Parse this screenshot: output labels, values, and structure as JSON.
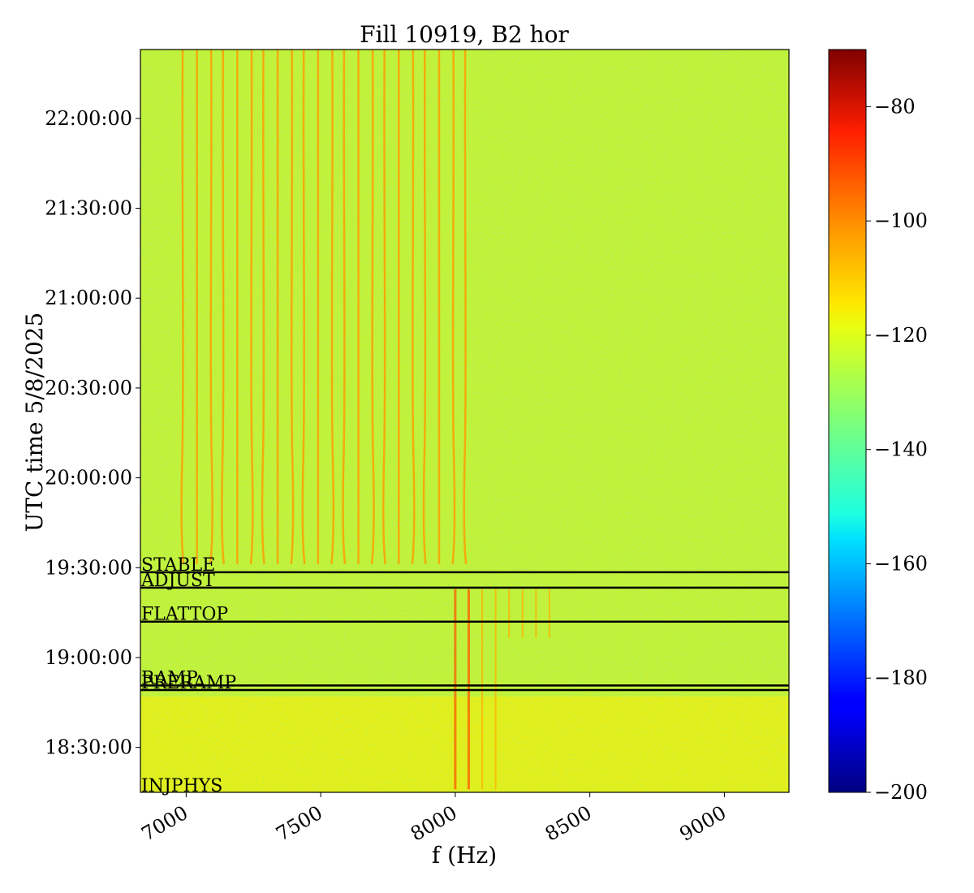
{
  "chart_data": {
    "type": "heatmap",
    "title": "Fill 10919, B2 hor",
    "xlabel": "f (Hz)",
    "ylabel": "UTC time 5/8/2025",
    "colormap": "jet",
    "xlim": [
      6830,
      9240
    ],
    "ylim_seconds_utc": [
      "18:15:00",
      "22:23:00"
    ],
    "x_ticks": [
      7000,
      7500,
      8000,
      8500,
      9000
    ],
    "x_tick_labels": [
      "7000",
      "7500",
      "8000",
      "8500",
      "9000"
    ],
    "y_ticks": [
      "18:30:00",
      "19:00:00",
      "19:30:00",
      "20:00:00",
      "20:30:00",
      "21:00:00",
      "21:30:00",
      "22:00:00"
    ],
    "y_tick_labels": [
      "18:30:00",
      "19:00:00",
      "19:30:00",
      "20:00:00",
      "20:30:00",
      "21:00:00",
      "21:30:00",
      "22:00:00"
    ],
    "colorbar": {
      "min": -200,
      "max": -70,
      "ticks": [
        -80,
        -100,
        -120,
        -140,
        -160,
        -180,
        -200
      ],
      "tick_labels": [
        "−80",
        "−100",
        "−120",
        "−140",
        "−160",
        "−180",
        "−200"
      ]
    },
    "events": [
      {
        "label": "INJPHYS",
        "time": "18:16:00"
      },
      {
        "label": "PRERAMP",
        "time": "18:49:10"
      },
      {
        "label": "RAMP",
        "time": "18:50:40"
      },
      {
        "label": "FLATTOP",
        "time": "19:12:00"
      },
      {
        "label": "ADJUST",
        "time": "19:23:20"
      },
      {
        "label": "STABLE",
        "time": "19:28:30"
      }
    ],
    "background_level_db": -125,
    "low_freq_region_level_db": -118,
    "lines_post_stable_hz": [
      6990,
      7040,
      7090,
      7140,
      7190,
      7240,
      7290,
      7340,
      7390,
      7440,
      7490,
      7540,
      7590,
      7640,
      7690,
      7740,
      7790,
      7840,
      7890,
      7940,
      7990,
      8040
    ],
    "strong_lines_hz": [
      7600,
      7650,
      7700,
      7750,
      7800,
      7850,
      7900
    ],
    "lines_pre_stable_hz": [
      8000,
      8050,
      8100,
      8150,
      8200,
      8250,
      8300,
      8350
    ]
  }
}
